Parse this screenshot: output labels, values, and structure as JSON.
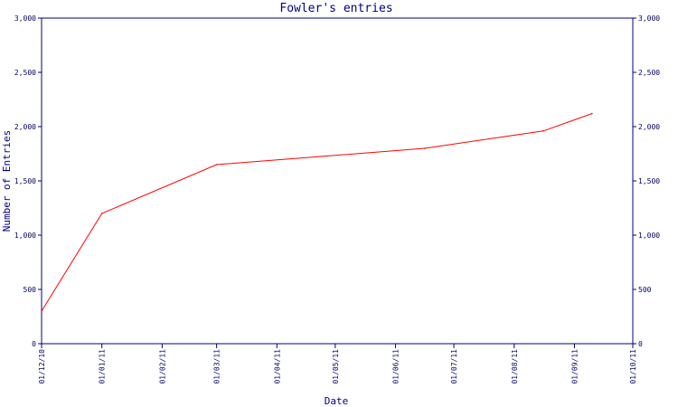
{
  "chart_data": {
    "type": "line",
    "title": "Fowler's entries",
    "xlabel": "Date",
    "ylabel": "Number of Entries",
    "x_tick_labels": [
      "01/12/10",
      "01/01/11",
      "01/02/11",
      "01/03/11",
      "01/04/11",
      "01/05/11",
      "01/06/11",
      "01/07/11",
      "01/08/11",
      "01/09/11",
      "01/10/11"
    ],
    "y_ticks": [
      0,
      500,
      1000,
      1500,
      2000,
      2500,
      3000
    ],
    "y_tick_labels": [
      "0",
      "500",
      "1,000",
      "1,500",
      "2,000",
      "2,500",
      "3,000"
    ],
    "ylim": [
      0,
      3000
    ],
    "xlim": [
      "2010-12-01",
      "2011-10-01"
    ],
    "grid": false,
    "series": [
      {
        "color": "#ff0000",
        "x": [
          "2010-12-01",
          "2011-01-01",
          "2011-03-01",
          "2011-06-16",
          "2011-08-16",
          "2011-09-10"
        ],
        "values": [
          300,
          1200,
          1650,
          1800,
          1960,
          2120
        ]
      }
    ],
    "axis_color": "#000080"
  }
}
